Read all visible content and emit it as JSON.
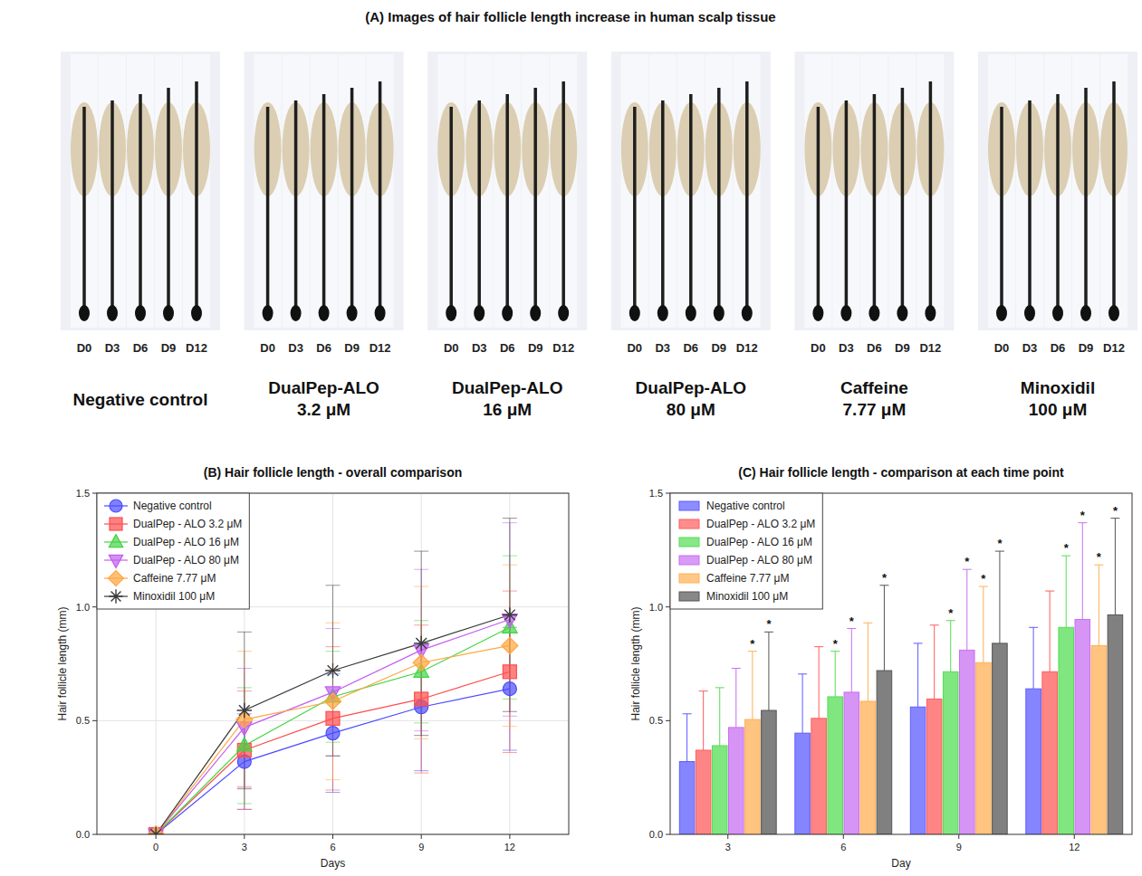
{
  "panel_a": {
    "title": "(A) Images of hair follicle length increase in human scalp tissue",
    "day_labels": [
      "D0",
      "D3",
      "D6",
      "D9",
      "D12"
    ],
    "groups": [
      [
        "Negative control"
      ],
      [
        "DualPep-ALO",
        "3.2 μM"
      ],
      [
        "DualPep-ALO",
        "16 μM"
      ],
      [
        "DualPep-ALO",
        "80 μM"
      ],
      [
        "Caffeine",
        "7.77 μM"
      ],
      [
        "Minoxidil",
        "100 μM"
      ]
    ]
  },
  "chart_data": [
    {
      "type": "line",
      "title": "(B) Hair follicle length - overall comparison",
      "x_label": "Days",
      "y_label": "Hair follicle length (mm)",
      "x": [
        0,
        3,
        6,
        9,
        12
      ],
      "xlim": [
        -2,
        14
      ],
      "xticks": [
        0,
        3,
        6,
        9,
        12
      ],
      "ylim": [
        0,
        1.5
      ],
      "yticks": [
        {
          "value": 0,
          "label": "0.0"
        },
        {
          "value": 0.5,
          "label": "0.5"
        },
        {
          "value": 1,
          "label": "1.0"
        },
        {
          "value": 1.5,
          "label": "1.5"
        }
      ],
      "grid": true,
      "legend": "top-left",
      "series": [
        {
          "name": "Negative control",
          "color": "#4b4bff",
          "marker": "circle",
          "values": [
            0,
            0.32,
            0.445,
            0.56,
            0.64
          ],
          "errors": [
            0,
            0.21,
            0.26,
            0.28,
            0.27
          ]
        },
        {
          "name": "DualPep - ALO 3.2 μM",
          "color": "#ff4d4d",
          "marker": "square",
          "values": [
            0,
            0.37,
            0.51,
            0.595,
            0.715
          ],
          "errors": [
            0,
            0.26,
            0.315,
            0.325,
            0.355
          ]
        },
        {
          "name": "DualPep - ALO 16 μM",
          "color": "#44d444",
          "marker": "triangle-up",
          "values": [
            0,
            0.39,
            0.605,
            0.715,
            0.91
          ],
          "errors": [
            0,
            0.255,
            0.2,
            0.225,
            0.315
          ]
        },
        {
          "name": "DualPep - ALO 80 μM",
          "color": "#c35ef0",
          "marker": "triangle-down",
          "values": [
            0,
            0.47,
            0.625,
            0.81,
            0.945
          ],
          "errors": [
            0,
            0.26,
            0.28,
            0.355,
            0.425
          ]
        },
        {
          "name": "Caffeine 7.77 μM",
          "color": "#ffa640",
          "marker": "diamond",
          "values": [
            0,
            0.505,
            0.585,
            0.755,
            0.83
          ],
          "errors": [
            0,
            0.3,
            0.345,
            0.335,
            0.355
          ]
        },
        {
          "name": "Minoxidil 100 μM",
          "color": "#3a3a3a",
          "marker": "asterisk",
          "values": [
            0,
            0.545,
            0.72,
            0.84,
            0.965
          ],
          "errors": [
            0,
            0.345,
            0.375,
            0.405,
            0.425
          ]
        }
      ]
    },
    {
      "type": "bar",
      "title": "(C) Hair follicle length - comparison at each time point",
      "x_label": "Day",
      "y_label": "Hair follicle length (mm)",
      "categories": [
        "3",
        "6",
        "9",
        "12"
      ],
      "ylim": [
        0,
        1.5
      ],
      "yticks": [
        {
          "value": 0,
          "label": "0.0"
        },
        {
          "value": 0.5,
          "label": "0.5"
        },
        {
          "value": 1,
          "label": "1.0"
        },
        {
          "value": 1.5,
          "label": "1.5"
        }
      ],
      "grid": false,
      "legend": "top-left",
      "series": [
        {
          "name": "Negative control",
          "color": "#5c5cff",
          "values": [
            0.32,
            0.445,
            0.56,
            0.64
          ],
          "errors": [
            0.21,
            0.26,
            0.28,
            0.27
          ]
        },
        {
          "name": "DualPep - ALO 3.2 μM",
          "color": "#ff5c5c",
          "values": [
            0.37,
            0.51,
            0.595,
            0.715
          ],
          "errors": [
            0.26,
            0.315,
            0.325,
            0.355
          ]
        },
        {
          "name": "DualPep - ALO 16 μM",
          "color": "#55dd55",
          "values": [
            0.39,
            0.605,
            0.715,
            0.91
          ],
          "errors": [
            0.255,
            0.2,
            0.225,
            0.315
          ]
        },
        {
          "name": "DualPep - ALO 80 μM",
          "color": "#c870f2",
          "values": [
            0.47,
            0.625,
            0.81,
            0.945
          ],
          "errors": [
            0.26,
            0.28,
            0.355,
            0.425
          ]
        },
        {
          "name": "Caffeine 7.77 μM",
          "color": "#ffb055",
          "values": [
            0.505,
            0.585,
            0.755,
            0.83
          ],
          "errors": [
            0.3,
            0.345,
            0.335,
            0.355
          ]
        },
        {
          "name": "Minoxidil 100 μM",
          "color": "#555555",
          "values": [
            0.545,
            0.72,
            0.84,
            0.965
          ],
          "errors": [
            0.345,
            0.375,
            0.405,
            0.425
          ]
        }
      ],
      "annotations": [
        {
          "text": "*",
          "series": 4,
          "category": 0
        },
        {
          "text": "*",
          "series": 5,
          "category": 0
        },
        {
          "text": "*",
          "series": 2,
          "category": 1
        },
        {
          "text": "*",
          "series": 3,
          "category": 1
        },
        {
          "text": "*",
          "series": 5,
          "category": 1
        },
        {
          "text": "*",
          "series": 2,
          "category": 2
        },
        {
          "text": "*",
          "series": 3,
          "category": 2
        },
        {
          "text": "*",
          "series": 4,
          "category": 2
        },
        {
          "text": "*",
          "series": 5,
          "category": 2
        },
        {
          "text": "*",
          "series": 2,
          "category": 3
        },
        {
          "text": "*",
          "series": 3,
          "category": 3
        },
        {
          "text": "*",
          "series": 4,
          "category": 3
        },
        {
          "text": "*",
          "series": 5,
          "category": 3
        }
      ]
    }
  ]
}
